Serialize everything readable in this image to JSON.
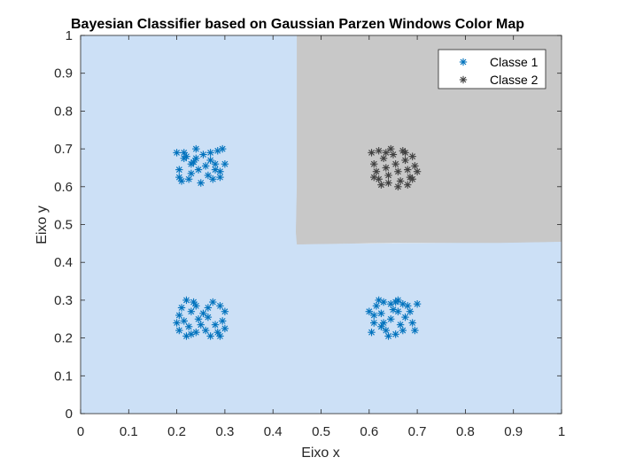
{
  "chart_data": {
    "type": "scatter",
    "title": "Bayesian Classifier based on Gaussian Parzen Windows Color Map",
    "xlabel": "Eixo x",
    "ylabel": "Eixo y",
    "xlim": [
      0,
      1
    ],
    "ylim": [
      0,
      1
    ],
    "xticks": [
      0,
      0.1,
      0.2,
      0.3,
      0.4,
      0.5,
      0.6,
      0.7,
      0.8,
      0.9,
      1
    ],
    "yticks": [
      0,
      0.1,
      0.2,
      0.3,
      0.4,
      0.5,
      0.6,
      0.7,
      0.8,
      0.9,
      1
    ],
    "xtick_labels": [
      "0",
      "0.1",
      "0.2",
      "0.3",
      "0.4",
      "0.5",
      "0.6",
      "0.7",
      "0.8",
      "0.9",
      "1"
    ],
    "ytick_labels": [
      "0",
      "0.1",
      "0.2",
      "0.3",
      "0.4",
      "0.5",
      "0.6",
      "0.7",
      "0.8",
      "0.9",
      "1"
    ],
    "grid": false,
    "legend_position": "top-right",
    "marker": "asterisk",
    "background_regions": [
      {
        "class": "Classe 1",
        "color": "#cce0f6",
        "polygon": [
          [
            0,
            0
          ],
          [
            1,
            0
          ],
          [
            1,
            0.455
          ],
          [
            0.87,
            0.452
          ],
          [
            0.45,
            0.448
          ],
          [
            0.45,
            1
          ],
          [
            0,
            1
          ]
        ]
      },
      {
        "class": "Classe 2",
        "color": "#c8c8c8",
        "polygon": [
          [
            0.45,
            1
          ],
          [
            1,
            1
          ],
          [
            1,
            0.455
          ],
          [
            0.87,
            0.452
          ],
          [
            0.65,
            0.452
          ],
          [
            0.45,
            0.448
          ],
          [
            0.448,
            0.48
          ],
          [
            0.45,
            0.6
          ]
        ]
      }
    ],
    "series": [
      {
        "name": "Classe 1",
        "color": "#0072bd",
        "points": [
          [
            0.2,
            0.69
          ],
          [
            0.215,
            0.675
          ],
          [
            0.23,
            0.66
          ],
          [
            0.22,
            0.68
          ],
          [
            0.24,
            0.7
          ],
          [
            0.255,
            0.685
          ],
          [
            0.27,
            0.67
          ],
          [
            0.285,
            0.695
          ],
          [
            0.295,
            0.7
          ],
          [
            0.28,
            0.66
          ],
          [
            0.29,
            0.64
          ],
          [
            0.265,
            0.63
          ],
          [
            0.245,
            0.645
          ],
          [
            0.225,
            0.62
          ],
          [
            0.21,
            0.615
          ],
          [
            0.205,
            0.645
          ],
          [
            0.23,
            0.635
          ],
          [
            0.25,
            0.61
          ],
          [
            0.275,
            0.62
          ],
          [
            0.29,
            0.625
          ],
          [
            0.26,
            0.655
          ],
          [
            0.235,
            0.665
          ],
          [
            0.215,
            0.69
          ],
          [
            0.27,
            0.69
          ],
          [
            0.3,
            0.66
          ],
          [
            0.205,
            0.625
          ],
          [
            0.24,
            0.675
          ],
          [
            0.28,
            0.645
          ],
          [
            0.205,
            0.26
          ],
          [
            0.22,
            0.3
          ],
          [
            0.235,
            0.295
          ],
          [
            0.23,
            0.27
          ],
          [
            0.215,
            0.245
          ],
          [
            0.205,
            0.22
          ],
          [
            0.22,
            0.205
          ],
          [
            0.24,
            0.215
          ],
          [
            0.25,
            0.235
          ],
          [
            0.255,
            0.265
          ],
          [
            0.265,
            0.28
          ],
          [
            0.275,
            0.295
          ],
          [
            0.29,
            0.285
          ],
          [
            0.3,
            0.27
          ],
          [
            0.295,
            0.245
          ],
          [
            0.3,
            0.225
          ],
          [
            0.285,
            0.215
          ],
          [
            0.27,
            0.205
          ],
          [
            0.26,
            0.22
          ],
          [
            0.245,
            0.25
          ],
          [
            0.21,
            0.28
          ],
          [
            0.225,
            0.23
          ],
          [
            0.28,
            0.235
          ],
          [
            0.265,
            0.255
          ],
          [
            0.23,
            0.21
          ],
          [
            0.29,
            0.205
          ],
          [
            0.2,
            0.24
          ],
          [
            0.24,
            0.285
          ],
          [
            0.605,
            0.215
          ],
          [
            0.61,
            0.26
          ],
          [
            0.615,
            0.285
          ],
          [
            0.625,
            0.265
          ],
          [
            0.63,
            0.24
          ],
          [
            0.635,
            0.22
          ],
          [
            0.64,
            0.205
          ],
          [
            0.645,
            0.25
          ],
          [
            0.65,
            0.275
          ],
          [
            0.655,
            0.295
          ],
          [
            0.66,
            0.27
          ],
          [
            0.665,
            0.235
          ],
          [
            0.67,
            0.22
          ],
          [
            0.675,
            0.255
          ],
          [
            0.68,
            0.285
          ],
          [
            0.685,
            0.27
          ],
          [
            0.69,
            0.24
          ],
          [
            0.695,
            0.22
          ],
          [
            0.7,
            0.29
          ],
          [
            0.62,
            0.3
          ],
          [
            0.63,
            0.295
          ],
          [
            0.645,
            0.29
          ],
          [
            0.66,
            0.3
          ],
          [
            0.625,
            0.23
          ],
          [
            0.61,
            0.24
          ],
          [
            0.655,
            0.21
          ],
          [
            0.67,
            0.29
          ],
          [
            0.6,
            0.27
          ]
        ]
      },
      {
        "name": "Classe 2",
        "color": "#404040",
        "points": [
          [
            0.605,
            0.69
          ],
          [
            0.61,
            0.66
          ],
          [
            0.615,
            0.64
          ],
          [
            0.62,
            0.62
          ],
          [
            0.625,
            0.605
          ],
          [
            0.63,
            0.675
          ],
          [
            0.635,
            0.65
          ],
          [
            0.64,
            0.63
          ],
          [
            0.645,
            0.7
          ],
          [
            0.65,
            0.685
          ],
          [
            0.655,
            0.66
          ],
          [
            0.66,
            0.64
          ],
          [
            0.665,
            0.615
          ],
          [
            0.67,
            0.695
          ],
          [
            0.675,
            0.67
          ],
          [
            0.68,
            0.645
          ],
          [
            0.685,
            0.625
          ],
          [
            0.69,
            0.68
          ],
          [
            0.695,
            0.655
          ],
          [
            0.7,
            0.64
          ],
          [
            0.62,
            0.695
          ],
          [
            0.64,
            0.61
          ],
          [
            0.66,
            0.6
          ],
          [
            0.68,
            0.605
          ],
          [
            0.69,
            0.62
          ],
          [
            0.61,
            0.625
          ],
          [
            0.635,
            0.69
          ],
          [
            0.675,
            0.69
          ]
        ]
      }
    ]
  }
}
